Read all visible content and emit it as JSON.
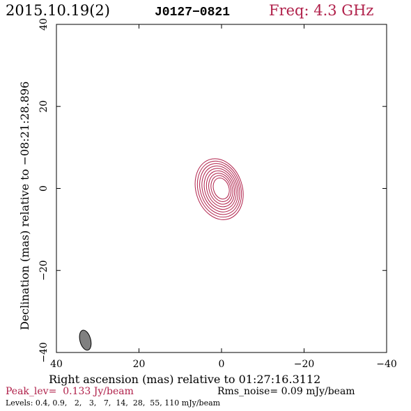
{
  "header": {
    "date": "2015.10.19(2)",
    "source": "J0127−0821",
    "freq": "Freq: 4.3 GHz"
  },
  "chart_data": {
    "type": "contour",
    "xlabel": "Right ascension (mas) relative to 01:27:16.3112",
    "ylabel": "Declination (mas) relative to −08:21:28.896",
    "xlim": [
      40,
      -40
    ],
    "ylim": [
      -40,
      40
    ],
    "xticks": [
      40,
      20,
      0,
      -20,
      -40
    ],
    "yticks": [
      -40,
      -20,
      0,
      20,
      40
    ],
    "xtick_labels": [
      "40",
      "20",
      "0",
      "−20",
      "−40"
    ],
    "ytick_labels": [
      "−40",
      "−20",
      "0",
      "20",
      "40"
    ],
    "contour_center": [
      0,
      0
    ],
    "contour_levels_mJy": [
      0.4,
      0.9,
      2,
      3,
      7,
      14,
      28,
      55,
      110
    ],
    "beam": {
      "center": [
        33,
        -37
      ],
      "major_mas": 5,
      "minor_mas": 2.6,
      "pa_deg": -15
    },
    "peak_text": "Peak_lev=  0.133 Jy/beam",
    "rms_text": "Rms_noise= 0.09 mJy/beam",
    "levels_text": "Levels: 0.4, 0.9,   2,   3,   7,  14,  28,  55, 110 mJy/beam"
  },
  "colors": {
    "contour": "#b0204a",
    "accent_text": "#b0204a",
    "beam_fill": "#808080"
  }
}
